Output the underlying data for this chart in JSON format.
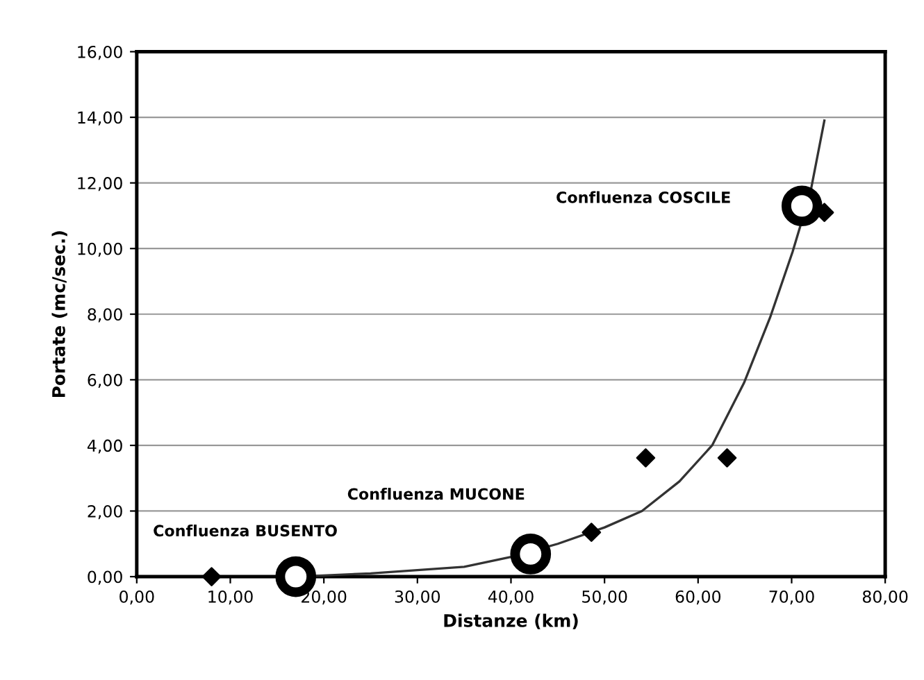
{
  "chart_data": {
    "type": "scatter",
    "xlabel": "Distanze (km)",
    "ylabel": "Portate (mc/sec.)",
    "series": [
      {
        "marker": "diamond",
        "color": "#000000",
        "x": [
          8,
          48.6,
          54.4,
          63.1,
          73.5
        ],
        "values": [
          0,
          1.35,
          3.62,
          3.62,
          11.1
        ]
      },
      {
        "marker": "circle",
        "color": "#000000",
        "x": [
          17,
          42.1,
          71.1
        ],
        "values": [
          0,
          0.69,
          11.3
        ]
      },
      {
        "type": "line",
        "marker": "none",
        "color": "#333333",
        "x": [
          17,
          25,
          30,
          35,
          40,
          45,
          50,
          54,
          58,
          61.5,
          64.9,
          67.7,
          70.1,
          72,
          73.5
        ],
        "values": [
          0,
          0.1,
          0.2,
          0.3,
          0.6,
          1,
          1.5,
          2,
          2.9,
          4,
          5.9,
          7.9,
          9.9,
          11.7,
          13.9
        ]
      }
    ],
    "annotations": [
      "Confluenza BUSENTO",
      "Confluenza MUCONE",
      "Confluenza COSCILE"
    ],
    "xlim": [
      0,
      80
    ],
    "ylim": [
      0,
      16
    ],
    "xticks": [
      {
        "value": 0,
        "label": "0,00"
      },
      {
        "value": 10,
        "label": "10,00"
      },
      {
        "value": 20,
        "label": "20,00"
      },
      {
        "value": 30,
        "label": "30,00"
      },
      {
        "value": 40,
        "label": "40,00"
      },
      {
        "value": 50,
        "label": "50,00"
      },
      {
        "value": 60,
        "label": "60,00"
      },
      {
        "value": 70,
        "label": "70,00"
      },
      {
        "value": 80,
        "label": "80,00"
      }
    ],
    "yticks": [
      {
        "value": 0,
        "label": "0,00"
      },
      {
        "value": 2,
        "label": "2,00"
      },
      {
        "value": 4,
        "label": "4,00"
      },
      {
        "value": 6,
        "label": "6,00"
      },
      {
        "value": 8,
        "label": "8,00"
      },
      {
        "value": 10,
        "label": "10,00"
      },
      {
        "value": 12,
        "label": "12,00"
      },
      {
        "value": 14,
        "label": "14,00"
      },
      {
        "value": 16,
        "label": "16,00"
      }
    ],
    "grid": "y",
    "legend": false
  }
}
